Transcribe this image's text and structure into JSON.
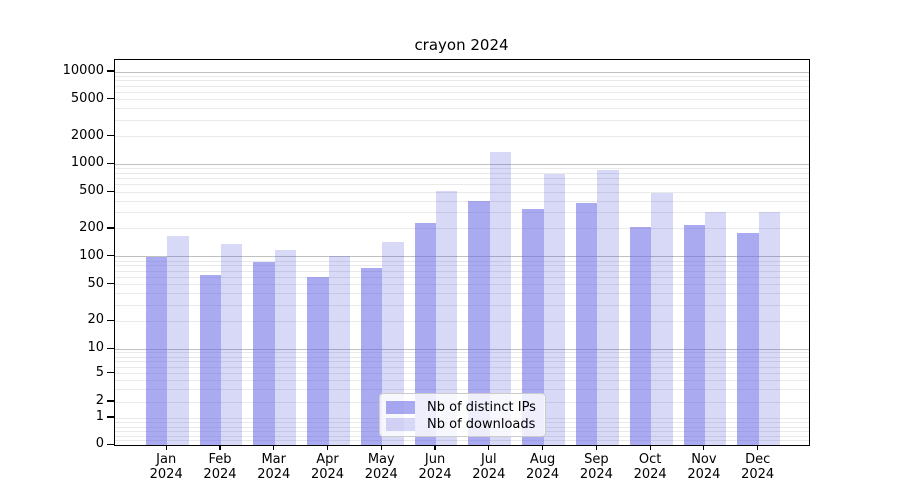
{
  "title": "crayon 2024",
  "chart_data": {
    "type": "bar",
    "title": "crayon 2024",
    "categories": [
      "Jan 2024",
      "Feb 2024",
      "Mar 2024",
      "Apr 2024",
      "May 2024",
      "Jun 2024",
      "Jul 2024",
      "Aug 2024",
      "Sep 2024",
      "Oct 2024",
      "Nov 2024",
      "Dec 2024"
    ],
    "series": [
      {
        "name": "Nb of distinct IPs",
        "color": "rgba(100,100,228,0.55)",
        "color_hex": "#aaaaf0",
        "values": [
          100,
          64,
          88,
          61,
          76,
          233,
          403,
          333,
          386,
          211,
          220,
          183
        ]
      },
      {
        "name": "Nb of downloads",
        "color": "rgba(60,60,215,0.20)",
        "color_hex": "#d8d8f7",
        "values": [
          170,
          138,
          118,
          103,
          145,
          517,
          1357,
          790,
          865,
          496,
          306,
          309
        ]
      }
    ],
    "xlabel": "",
    "ylabel": "",
    "yscale": "symlog",
    "ylim": [
      0,
      10000
    ],
    "yticks": [
      0,
      1,
      2,
      5,
      10,
      20,
      50,
      100,
      200,
      500,
      1000,
      2000,
      5000,
      10000
    ],
    "grid": true,
    "legend_position": "lower center"
  },
  "legend": {
    "items": [
      {
        "label": "Nb of distinct IPs"
      },
      {
        "label": "Nb of downloads"
      }
    ]
  }
}
